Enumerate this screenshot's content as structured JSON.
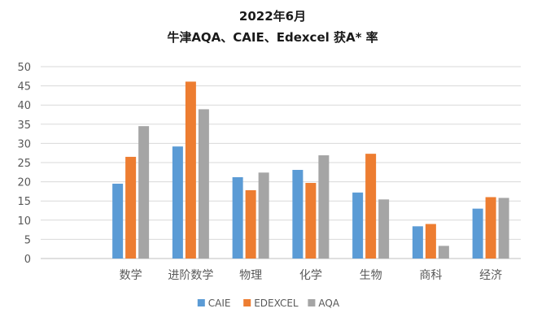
{
  "chart_data": {
    "type": "bar",
    "title_line1": "2022年6月",
    "title_line2": "牛津AQA、CAIE、Edexcel 获A* 率",
    "categories": [
      "",
      "数学",
      "进阶数学",
      "物理",
      "化学",
      "生物",
      "商科",
      "经济"
    ],
    "series": [
      {
        "name": "CAIE",
        "color": "#5B9BD5",
        "values": [
          null,
          19.5,
          29.2,
          21.2,
          23.1,
          17.2,
          8.4,
          13.0
        ]
      },
      {
        "name": "EDEXCEL",
        "color": "#ED7D31",
        "values": [
          null,
          26.5,
          46.1,
          17.8,
          19.7,
          27.3,
          9.0,
          16.0
        ]
      },
      {
        "name": "AQA",
        "color": "#A5A5A5",
        "values": [
          null,
          34.5,
          38.9,
          22.4,
          26.9,
          15.4,
          3.3,
          15.8
        ]
      }
    ],
    "ylim": [
      0,
      50
    ],
    "yticks": [
      0,
      5,
      10,
      15,
      20,
      25,
      30,
      35,
      40,
      45,
      50
    ],
    "grid": true,
    "legend_position": "bottom"
  }
}
